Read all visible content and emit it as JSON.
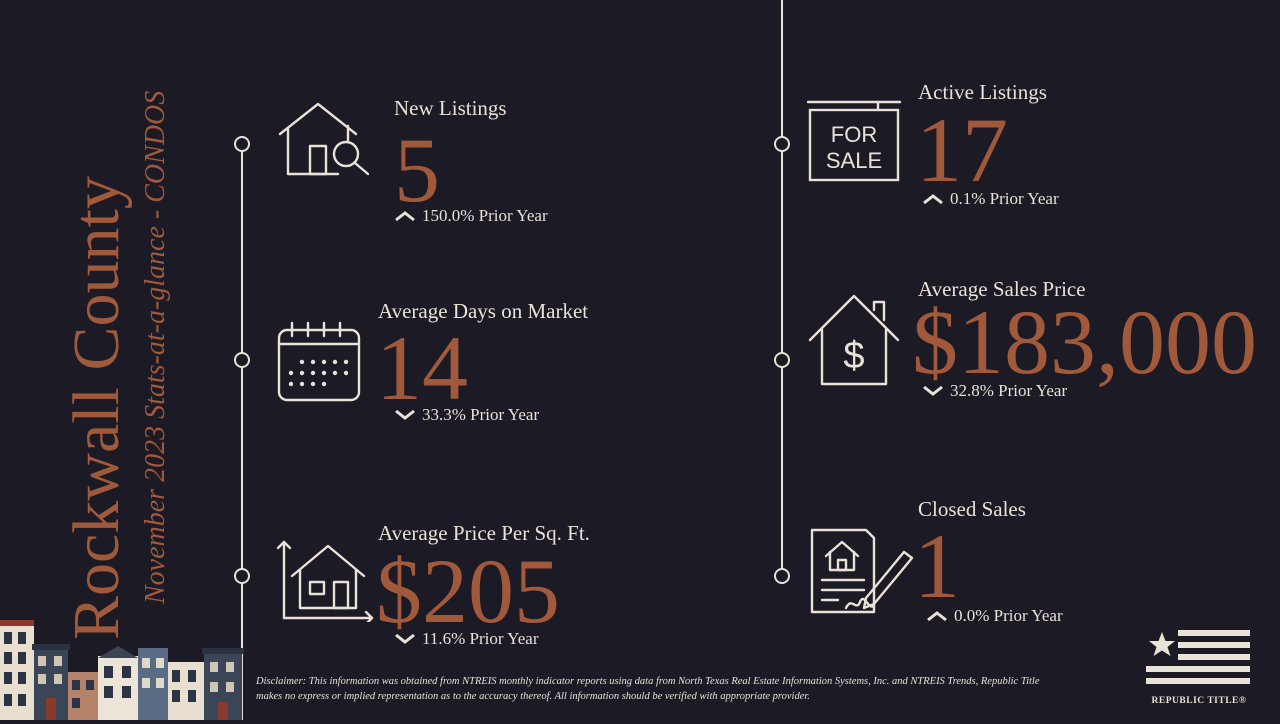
{
  "header": {
    "county": "Rockwall County",
    "subtitle": "November 2023 Stats-at-a-glance - CONDOS"
  },
  "stats": {
    "new_listings": {
      "label": "New Listings",
      "value": "5",
      "change": "150.0% Prior Year",
      "direction": "up",
      "icon": "house-search-icon"
    },
    "avg_days": {
      "label": "Average Days on Market",
      "value": "14",
      "change": "33.3% Prior Year",
      "direction": "down",
      "icon": "calendar-icon"
    },
    "price_sqft": {
      "label": "Average Price Per Sq. Ft.",
      "value": "$205",
      "change": "11.6% Prior Year",
      "direction": "down",
      "icon": "house-dimensions-icon"
    },
    "active_listings": {
      "label": "Active Listings",
      "value": "17",
      "change": "0.1% Prior Year",
      "direction": "up",
      "icon": "for-sale-sign-icon",
      "sign_line1": "FOR",
      "sign_line2": "SALE"
    },
    "avg_price": {
      "label": "Average Sales Price",
      "value": "$183,000",
      "change": "32.8% Prior Year",
      "direction": "down",
      "icon": "house-dollar-icon"
    },
    "closed_sales": {
      "label": "Closed Sales",
      "value": "1",
      "change": "0.0% Prior Year",
      "direction": "up",
      "icon": "contract-signing-icon"
    }
  },
  "footer": {
    "disclaimer": "Disclaimer: This information was obtained from NTREIS monthly indicator reports using data from North Texas Real Estate Information Systems, Inc. and NTREIS Trends, Republic Title makes no express or implied representation as to the accuracy thereof. All information should be verified with appropriate provider.",
    "brand": "REPUBLIC TITLE®"
  },
  "colors": {
    "background": "#1c1a25",
    "accent": "#a0593a",
    "text": "#e9e2d6"
  }
}
